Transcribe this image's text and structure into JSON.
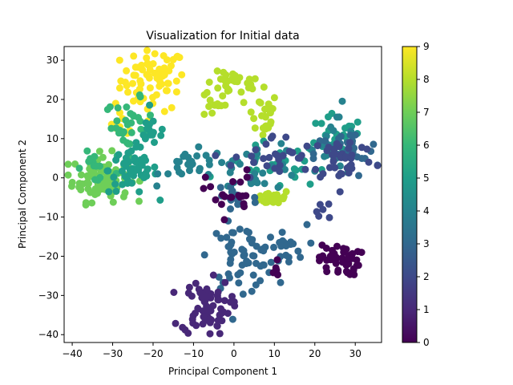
{
  "chart_data": {
    "type": "scatter",
    "title": "Visualization for Initial data",
    "xlabel": "Principal Component 1",
    "ylabel": "Principal Component 2",
    "xlim": [
      -42,
      36.5
    ],
    "ylim": [
      -42,
      33.5
    ],
    "xticks": [
      -40,
      -30,
      -20,
      -10,
      0,
      10,
      20,
      30
    ],
    "yticks": [
      -40,
      -30,
      -20,
      -10,
      0,
      10,
      20,
      30
    ],
    "grid": false,
    "colormap": "viridis",
    "colorbar": {
      "min": 0,
      "max": 9,
      "ticks": [
        0,
        1,
        2,
        3,
        4,
        5,
        6,
        7,
        8,
        9
      ]
    },
    "viridis_stops": [
      "#440154",
      "#482878",
      "#3e4989",
      "#31688e",
      "#26828e",
      "#1f9e89",
      "#35b779",
      "#6ece58",
      "#b5de2b",
      "#fde725"
    ],
    "clusters": [
      {
        "label": 9,
        "center": [
          -20,
          25
        ],
        "spread": [
          4,
          4
        ],
        "n": 70
      },
      {
        "label": 9,
        "center": [
          -28,
          14
        ],
        "spread": [
          2,
          2
        ],
        "n": 8
      },
      {
        "label": 8,
        "center": [
          0,
          24
        ],
        "spread": [
          3.5,
          1.5
        ],
        "n": 30
      },
      {
        "label": 8,
        "center": [
          -5,
          19
        ],
        "spread": [
          1.5,
          2
        ],
        "n": 12
      },
      {
        "label": 8,
        "center": [
          7,
          16
        ],
        "spread": [
          2,
          3
        ],
        "n": 25
      },
      {
        "label": 8,
        "center": [
          10,
          -5
        ],
        "spread": [
          2,
          1
        ],
        "n": 25
      },
      {
        "label": 7,
        "center": [
          -33,
          0
        ],
        "spread": [
          3.5,
          3
        ],
        "n": 90
      },
      {
        "label": 6,
        "center": [
          -26,
          13
        ],
        "spread": [
          3,
          3.5
        ],
        "n": 35
      },
      {
        "label": 6,
        "center": [
          -35,
          3
        ],
        "spread": [
          2,
          2
        ],
        "n": 12
      },
      {
        "label": 5,
        "center": [
          -25,
          2
        ],
        "spread": [
          3,
          3
        ],
        "n": 55
      },
      {
        "label": 5,
        "center": [
          -20,
          12
        ],
        "spread": [
          2,
          2
        ],
        "n": 15
      },
      {
        "label": 5,
        "center": [
          25,
          8
        ],
        "spread": [
          3.5,
          4
        ],
        "n": 30
      },
      {
        "label": 5,
        "center": [
          10,
          3
        ],
        "spread": [
          6,
          3
        ],
        "n": 25
      },
      {
        "label": 4,
        "center": [
          -10,
          3
        ],
        "spread": [
          4,
          2
        ],
        "n": 25
      },
      {
        "label": 4,
        "center": [
          5,
          3
        ],
        "spread": [
          6,
          3
        ],
        "n": 30
      },
      {
        "label": 4,
        "center": [
          25,
          10
        ],
        "spread": [
          3,
          4
        ],
        "n": 15
      },
      {
        "label": 3,
        "center": [
          2,
          -20
        ],
        "spread": [
          4,
          4
        ],
        "n": 60
      },
      {
        "label": 3,
        "center": [
          12,
          -18
        ],
        "spread": [
          3,
          3
        ],
        "n": 20
      },
      {
        "label": 3,
        "center": [
          28,
          6
        ],
        "spread": [
          4,
          3
        ],
        "n": 30
      },
      {
        "label": 3,
        "center": [
          0,
          -5
        ],
        "spread": [
          3,
          3
        ],
        "n": 15
      },
      {
        "label": 2,
        "center": [
          27,
          5
        ],
        "spread": [
          4,
          3
        ],
        "n": 40
      },
      {
        "label": 2,
        "center": [
          10,
          5
        ],
        "spread": [
          5,
          3
        ],
        "n": 30
      },
      {
        "label": 2,
        "center": [
          22,
          -8
        ],
        "spread": [
          1.5,
          1.5
        ],
        "n": 6
      },
      {
        "label": 1,
        "center": [
          -7,
          -33
        ],
        "spread": [
          3,
          3.5
        ],
        "n": 70
      },
      {
        "label": 0,
        "center": [
          26,
          -21
        ],
        "spread": [
          2.5,
          2
        ],
        "n": 50
      },
      {
        "label": 0,
        "center": [
          -1,
          -4
        ],
        "spread": [
          3,
          3
        ],
        "n": 20
      },
      {
        "label": 0,
        "center": [
          10,
          -23
        ],
        "spread": [
          1.5,
          2
        ],
        "n": 6
      }
    ]
  }
}
